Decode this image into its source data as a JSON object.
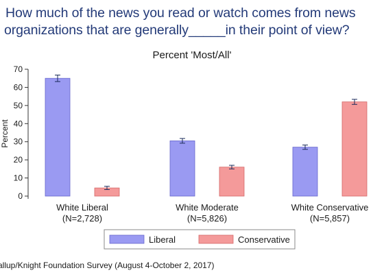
{
  "question": {
    "line1": "How much of the news you read or watch comes from news",
    "line2": "organizations that are generally_____in their point of view?"
  },
  "source": "allup/Knight Foundation Survey (August 4-October 2, 2017)",
  "chart_data": {
    "type": "bar",
    "title": "Percent 'Most/All'",
    "ylabel": "Percent",
    "ylim": [
      0,
      70
    ],
    "yticks": [
      0,
      10,
      20,
      30,
      40,
      50,
      60,
      70
    ],
    "grid": false,
    "legend": "bottom",
    "categories": [
      {
        "label": "White Liberal",
        "n": "(N=2,728)"
      },
      {
        "label": "White Moderate",
        "n": "(N=5,826)"
      },
      {
        "label": "White Conservative",
        "n": "(N=5,857)"
      }
    ],
    "series": [
      {
        "name": "Liberal",
        "color": "#9a9af2",
        "edge": "#6666cc",
        "values": [
          65,
          30.5,
          27
        ],
        "error": [
          1.8,
          1.3,
          1.2
        ]
      },
      {
        "name": "Conservative",
        "color": "#f49a9a",
        "edge": "#d46a6a",
        "values": [
          4.5,
          16,
          52
        ],
        "error": [
          0.9,
          1.0,
          1.4
        ]
      }
    ]
  }
}
